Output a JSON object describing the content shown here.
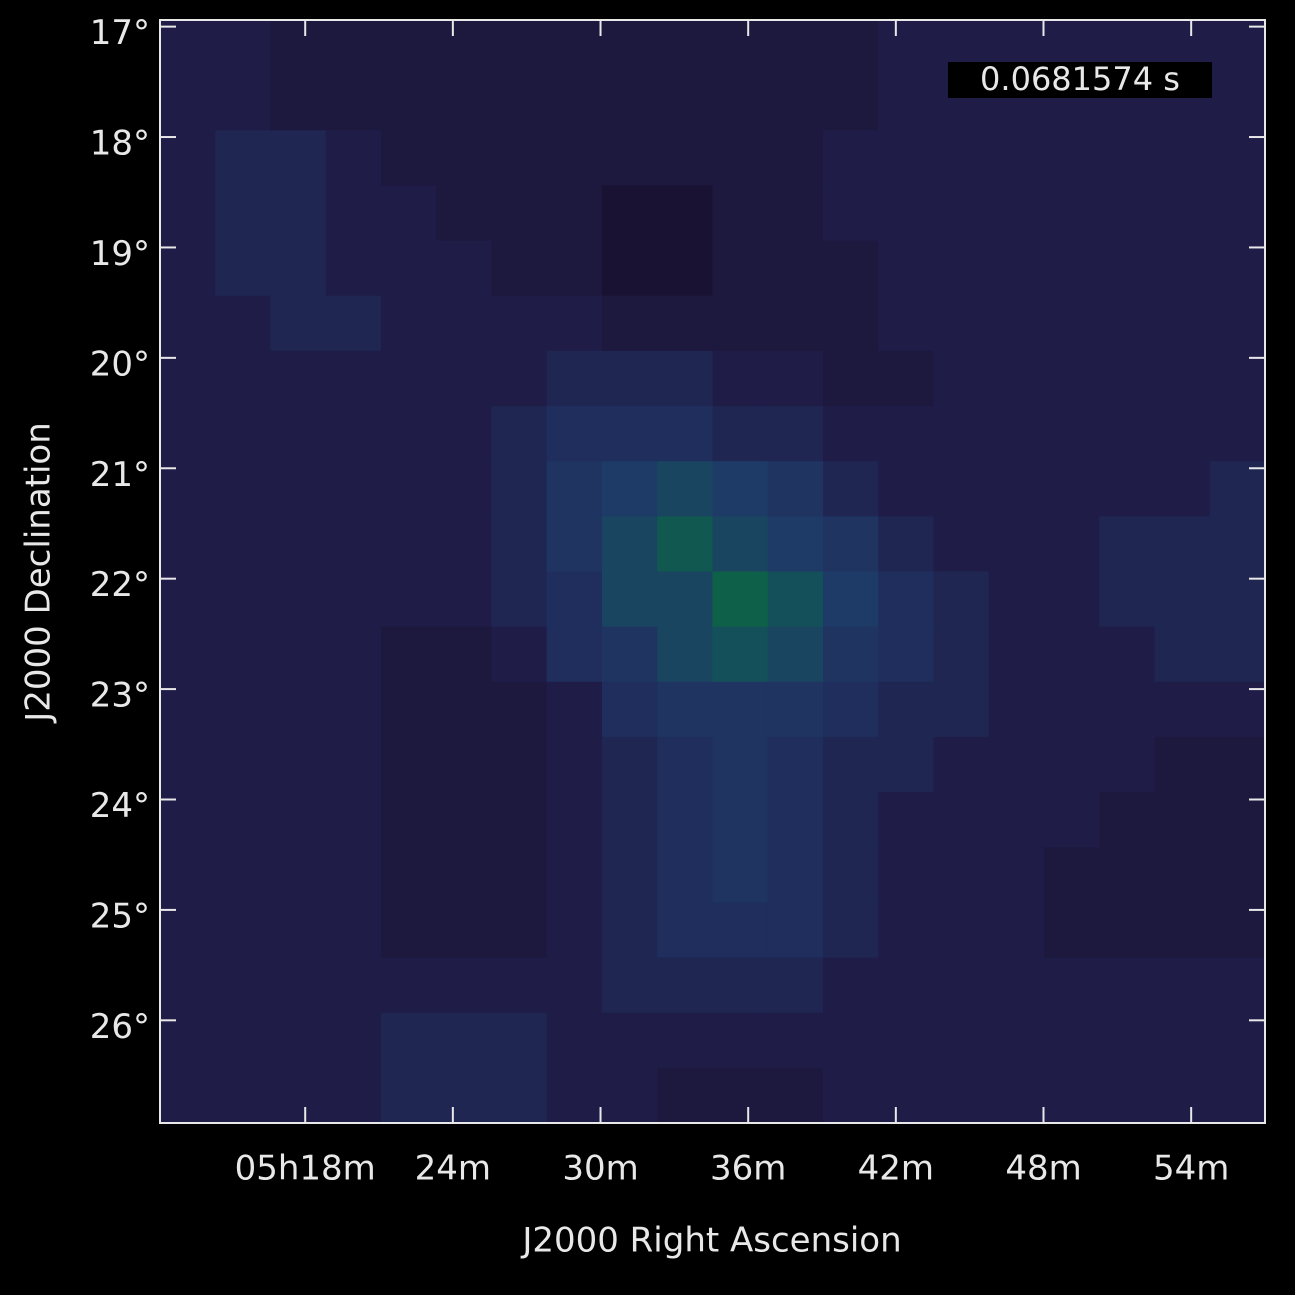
{
  "chart_data": {
    "type": "image",
    "annotation": "0.0681574 s",
    "xlabel": "J2000 Right Ascension",
    "ylabel": "J2000 Declination",
    "xlim": [
      12.1,
      57.0
    ],
    "ylim": [
      16.94,
      26.93
    ],
    "xticks": [
      {
        "value": 18,
        "label": "05h18m"
      },
      {
        "value": 24,
        "label": "24m"
      },
      {
        "value": 30,
        "label": "30m"
      },
      {
        "value": 36,
        "label": "36m"
      },
      {
        "value": 42,
        "label": "42m"
      },
      {
        "value": 48,
        "label": "48m"
      },
      {
        "value": 54,
        "label": "54m"
      }
    ],
    "yticks": [
      {
        "value": 17,
        "label": "17°"
      },
      {
        "value": 18,
        "label": "18°"
      },
      {
        "value": 19,
        "label": "19°"
      },
      {
        "value": 20,
        "label": "20°"
      },
      {
        "value": 21,
        "label": "21°"
      },
      {
        "value": 22,
        "label": "22°"
      },
      {
        "value": 23,
        "label": "23°"
      },
      {
        "value": 24,
        "label": "24°"
      },
      {
        "value": 25,
        "label": "25°"
      },
      {
        "value": 26,
        "label": "26°"
      }
    ],
    "colormap": [
      "#1a1233",
      "#1f1d48",
      "#1f2e5c",
      "#1e3a66",
      "#14505a",
      "#0e6048"
    ],
    "z": [
      [
        2,
        2,
        1,
        1,
        1,
        1,
        1,
        1,
        1,
        1,
        1,
        1,
        1,
        2,
        2,
        2,
        2,
        2,
        2,
        2
      ],
      [
        2,
        2,
        1,
        1,
        1,
        1,
        1,
        1,
        1,
        1,
        1,
        1,
        1,
        2,
        2,
        2,
        2,
        2,
        2,
        2
      ],
      [
        2,
        3,
        3,
        2,
        1,
        1,
        1,
        1,
        1,
        1,
        1,
        1,
        2,
        2,
        2,
        2,
        2,
        2,
        2,
        2
      ],
      [
        2,
        3,
        3,
        2,
        2,
        1,
        1,
        1,
        0,
        0,
        1,
        1,
        2,
        2,
        2,
        2,
        2,
        2,
        2,
        2
      ],
      [
        2,
        3,
        3,
        2,
        2,
        2,
        1,
        1,
        0,
        0,
        1,
        1,
        1,
        2,
        2,
        2,
        2,
        2,
        2,
        2
      ],
      [
        2,
        2,
        3,
        3,
        2,
        2,
        2,
        2,
        1,
        1,
        1,
        1,
        1,
        2,
        2,
        2,
        2,
        2,
        2,
        2
      ],
      [
        2,
        2,
        2,
        2,
        2,
        2,
        2,
        3,
        3,
        3,
        2,
        2,
        1,
        1,
        2,
        2,
        2,
        2,
        2,
        2
      ],
      [
        2,
        2,
        2,
        2,
        2,
        2,
        3,
        4,
        4,
        4,
        3,
        3,
        2,
        2,
        2,
        2,
        2,
        2,
        2,
        2
      ],
      [
        2,
        2,
        2,
        2,
        2,
        2,
        3,
        5,
        6,
        7,
        6,
        5,
        3,
        2,
        2,
        2,
        2,
        2,
        2,
        3
      ],
      [
        2,
        2,
        2,
        2,
        2,
        2,
        3,
        5,
        7,
        9,
        7,
        6,
        5,
        3,
        2,
        2,
        2,
        3,
        3,
        3
      ],
      [
        2,
        2,
        2,
        2,
        2,
        2,
        3,
        4,
        7,
        7,
        10,
        8,
        6,
        4,
        3,
        2,
        2,
        3,
        3,
        3
      ],
      [
        2,
        2,
        2,
        2,
        1,
        1,
        2,
        4,
        5,
        7,
        8,
        7,
        5,
        4,
        3,
        2,
        2,
        2,
        3,
        3
      ],
      [
        2,
        2,
        2,
        2,
        1,
        1,
        1,
        2,
        4,
        5,
        5,
        5,
        4,
        3,
        3,
        2,
        2,
        2,
        2,
        2
      ],
      [
        2,
        2,
        2,
        2,
        1,
        1,
        1,
        2,
        3,
        4,
        5,
        4,
        3,
        3,
        2,
        2,
        2,
        2,
        1,
        1
      ],
      [
        2,
        2,
        2,
        2,
        1,
        1,
        1,
        2,
        3,
        4,
        5,
        4,
        3,
        2,
        2,
        2,
        2,
        1,
        1,
        1
      ],
      [
        2,
        2,
        2,
        2,
        1,
        1,
        1,
        2,
        3,
        4,
        5,
        4,
        3,
        2,
        2,
        2,
        1,
        1,
        1,
        1
      ],
      [
        2,
        2,
        2,
        2,
        1,
        1,
        1,
        2,
        3,
        4,
        4,
        4,
        3,
        2,
        2,
        2,
        1,
        1,
        1,
        1
      ],
      [
        2,
        2,
        2,
        2,
        2,
        2,
        2,
        2,
        3,
        3,
        3,
        3,
        2,
        2,
        2,
        2,
        2,
        2,
        2,
        2
      ],
      [
        2,
        2,
        2,
        2,
        3,
        3,
        3,
        2,
        2,
        2,
        2,
        2,
        2,
        2,
        2,
        2,
        2,
        2,
        2,
        2
      ],
      [
        2,
        2,
        2,
        2,
        3,
        3,
        3,
        2,
        2,
        1,
        1,
        1,
        2,
        2,
        2,
        2,
        2,
        2,
        2,
        2
      ]
    ]
  }
}
